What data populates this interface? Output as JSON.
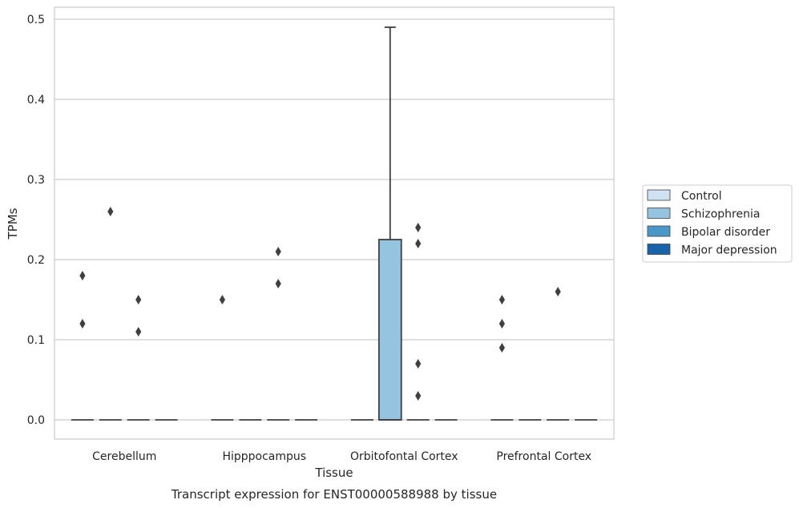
{
  "chart_data": {
    "type": "box",
    "xlabel": "Tissue",
    "ylabel": "TPMs",
    "caption": "Transcript expression for ENST00000588988 by tissue",
    "ylim": [
      -0.024,
      0.515
    ],
    "yticks": [
      "0.0",
      "0.1",
      "0.2",
      "0.3",
      "0.4",
      "0.5"
    ],
    "grid": true,
    "legend_position": "right",
    "categories": [
      "Cerebellum",
      "Hipppocampus",
      "Orbitofontal Cortex",
      "Prefrontal Cortex"
    ],
    "series": [
      {
        "name": "Control",
        "color": "#d0e1f2"
      },
      {
        "name": "Schizophrenia",
        "color": "#94c4df"
      },
      {
        "name": "Bipolar disorder",
        "color": "#4a98c9"
      },
      {
        "name": "Major depression",
        "color": "#1764ab"
      }
    ],
    "boxes": [
      {
        "category": "Cerebellum",
        "series": "Control",
        "q1": 0,
        "median": 0,
        "q3": 0,
        "whisker_low": 0,
        "whisker_high": 0,
        "outliers": [
          0.12,
          0.18
        ]
      },
      {
        "category": "Cerebellum",
        "series": "Schizophrenia",
        "q1": 0,
        "median": 0,
        "q3": 0,
        "whisker_low": 0,
        "whisker_high": 0,
        "outliers": [
          0.26
        ]
      },
      {
        "category": "Cerebellum",
        "series": "Bipolar disorder",
        "q1": 0,
        "median": 0,
        "q3": 0,
        "whisker_low": 0,
        "whisker_high": 0,
        "outliers": [
          0.11,
          0.15
        ]
      },
      {
        "category": "Cerebellum",
        "series": "Major depression",
        "q1": 0,
        "median": 0,
        "q3": 0,
        "whisker_low": 0,
        "whisker_high": 0,
        "outliers": []
      },
      {
        "category": "Hipppocampus",
        "series": "Control",
        "q1": 0,
        "median": 0,
        "q3": 0,
        "whisker_low": 0,
        "whisker_high": 0,
        "outliers": [
          0.15
        ]
      },
      {
        "category": "Hipppocampus",
        "series": "Schizophrenia",
        "q1": 0,
        "median": 0,
        "q3": 0,
        "whisker_low": 0,
        "whisker_high": 0,
        "outliers": []
      },
      {
        "category": "Hipppocampus",
        "series": "Bipolar disorder",
        "q1": 0,
        "median": 0,
        "q3": 0,
        "whisker_low": 0,
        "whisker_high": 0,
        "outliers": [
          0.17,
          0.21
        ]
      },
      {
        "category": "Hipppocampus",
        "series": "Major depression",
        "q1": 0,
        "median": 0,
        "q3": 0,
        "whisker_low": 0,
        "whisker_high": 0,
        "outliers": []
      },
      {
        "category": "Orbitofontal Cortex",
        "series": "Control",
        "q1": 0,
        "median": 0,
        "q3": 0,
        "whisker_low": 0,
        "whisker_high": 0,
        "outliers": []
      },
      {
        "category": "Orbitofontal Cortex",
        "series": "Schizophrenia",
        "q1": 0,
        "median": 0,
        "q3": 0.225,
        "whisker_low": 0,
        "whisker_high": 0.49,
        "outliers": []
      },
      {
        "category": "Orbitofontal Cortex",
        "series": "Bipolar disorder",
        "q1": 0,
        "median": 0,
        "q3": 0,
        "whisker_low": 0,
        "whisker_high": 0,
        "outliers": [
          0.03,
          0.07,
          0.22,
          0.24
        ]
      },
      {
        "category": "Orbitofontal Cortex",
        "series": "Major depression",
        "q1": 0,
        "median": 0,
        "q3": 0,
        "whisker_low": 0,
        "whisker_high": 0,
        "outliers": []
      },
      {
        "category": "Prefrontal Cortex",
        "series": "Control",
        "q1": 0,
        "median": 0,
        "q3": 0,
        "whisker_low": 0,
        "whisker_high": 0,
        "outliers": [
          0.09,
          0.12,
          0.15
        ]
      },
      {
        "category": "Prefrontal Cortex",
        "series": "Schizophrenia",
        "q1": 0,
        "median": 0,
        "q3": 0,
        "whisker_low": 0,
        "whisker_high": 0,
        "outliers": []
      },
      {
        "category": "Prefrontal Cortex",
        "series": "Bipolar disorder",
        "q1": 0,
        "median": 0,
        "q3": 0,
        "whisker_low": 0,
        "whisker_high": 0,
        "outliers": [
          0.16
        ]
      },
      {
        "category": "Prefrontal Cortex",
        "series": "Major depression",
        "q1": 0,
        "median": 0,
        "q3": 0,
        "whisker_low": 0,
        "whisker_high": 0,
        "outliers": []
      }
    ],
    "colors": {
      "grid": "#cccccc",
      "frame": "#cccccc",
      "line": "#3f3f3f"
    }
  }
}
